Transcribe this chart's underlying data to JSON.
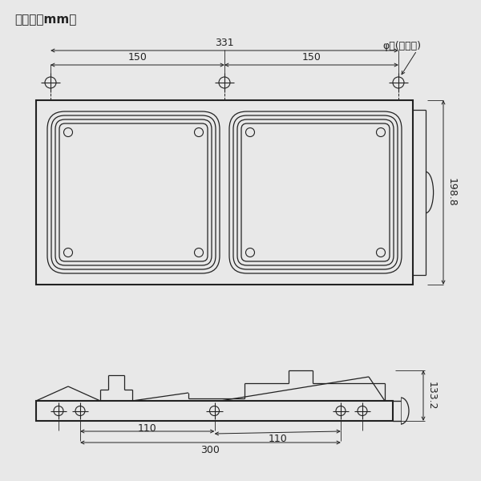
{
  "title_unit": "【単位：mm】",
  "note_phi": "φ９(８ヶ所)",
  "bg_color": "#e8e8e8",
  "line_color": "#222222",
  "dim_331": "331",
  "dim_150a": "150",
  "dim_150b": "150",
  "dim_198_8": "198.8",
  "dim_133_2": "133.2",
  "dim_110a": "110",
  "dim_110b": "110",
  "dim_300": "300"
}
